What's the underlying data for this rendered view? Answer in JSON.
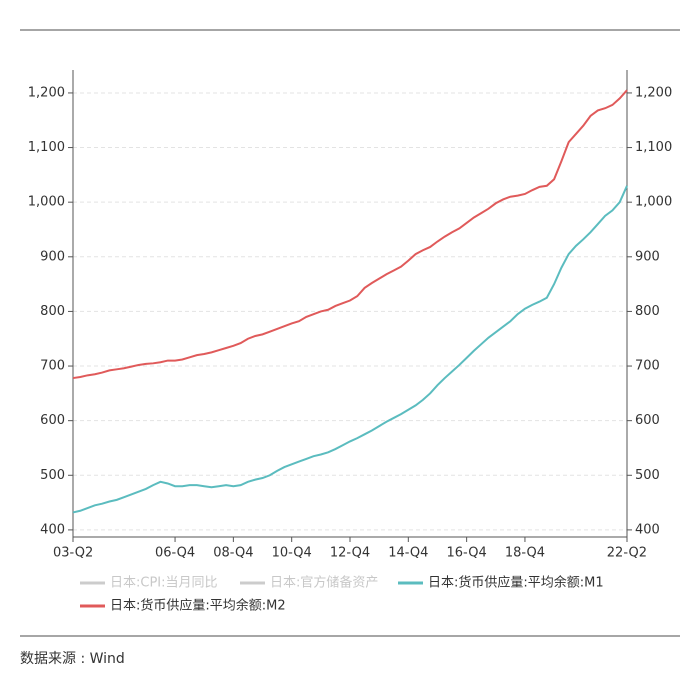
{
  "chart_data": {
    "type": "line",
    "categories": [
      "03-Q2",
      null,
      null,
      null,
      null,
      null,
      null,
      null,
      null,
      null,
      null,
      null,
      null,
      null,
      "06-Q4",
      null,
      null,
      null,
      null,
      null,
      null,
      null,
      "08-Q4",
      null,
      null,
      null,
      null,
      null,
      null,
      null,
      "10-Q4",
      null,
      null,
      null,
      null,
      null,
      null,
      null,
      "12-Q4",
      null,
      null,
      null,
      null,
      null,
      null,
      null,
      "14-Q4",
      null,
      null,
      null,
      null,
      null,
      null,
      null,
      "16-Q4",
      null,
      null,
      null,
      null,
      null,
      null,
      null,
      "18-Q4",
      null,
      null,
      null,
      null,
      null,
      null,
      null,
      null,
      null,
      null,
      null,
      null,
      null,
      "22-Q2"
    ],
    "series": [
      {
        "name": "日本:CPI:当月同比",
        "color": "#cccccc",
        "visible": false,
        "values": [
          null,
          null,
          null,
          null,
          null,
          null,
          null,
          null,
          null,
          null,
          null,
          null,
          null,
          null,
          null,
          null,
          null,
          null,
          null,
          null,
          null,
          null,
          null,
          null,
          null,
          null,
          null,
          null,
          null,
          null,
          null,
          null,
          null,
          null,
          null,
          null,
          null,
          null,
          null,
          null,
          null,
          null,
          null,
          null,
          null,
          null,
          null,
          null,
          null,
          null,
          null,
          null,
          null,
          null,
          null,
          null,
          null,
          null,
          null,
          null,
          null,
          null,
          null,
          null,
          null,
          null,
          null,
          null,
          null,
          null,
          null,
          null,
          null,
          null,
          null,
          null,
          null
        ]
      },
      {
        "name": "日本:官方储备资产",
        "color": "#cccccc",
        "visible": false,
        "values": [
          null,
          null,
          null,
          null,
          null,
          null,
          null,
          null,
          null,
          null,
          null,
          null,
          null,
          null,
          null,
          null,
          null,
          null,
          null,
          null,
          null,
          null,
          null,
          null,
          null,
          null,
          null,
          null,
          null,
          null,
          null,
          null,
          null,
          null,
          null,
          null,
          null,
          null,
          null,
          null,
          null,
          null,
          null,
          null,
          null,
          null,
          null,
          null,
          null,
          null,
          null,
          null,
          null,
          null,
          null,
          null,
          null,
          null,
          null,
          null,
          null,
          null,
          null,
          null,
          null,
          null,
          null,
          null,
          null,
          null,
          null,
          null,
          null,
          null,
          null,
          null,
          null
        ]
      },
      {
        "name": "日本:货币供应量:平均余额:M1",
        "color": "#5bbcbf",
        "visible": true,
        "values": [
          432,
          435,
          440,
          445,
          448,
          452,
          455,
          460,
          465,
          470,
          475,
          482,
          488,
          485,
          480,
          480,
          482,
          482,
          480,
          478,
          480,
          482,
          480,
          482,
          488,
          492,
          495,
          500,
          508,
          515,
          520,
          525,
          530,
          535,
          538,
          542,
          548,
          555,
          562,
          568,
          575,
          582,
          590,
          598,
          605,
          612,
          620,
          628,
          638,
          650,
          665,
          678,
          690,
          702,
          715,
          728,
          740,
          752,
          762,
          772,
          782,
          795,
          805,
          812,
          818,
          825,
          850,
          880,
          905,
          920,
          932,
          945,
          960,
          975,
          985,
          1000,
          1030
        ]
      },
      {
        "name": "日本:货币供应量:平均余额:M2",
        "color": "#e05a5a",
        "visible": true,
        "values": [
          678,
          680,
          683,
          685,
          688,
          692,
          694,
          696,
          699,
          702,
          704,
          705,
          707,
          710,
          710,
          712,
          716,
          720,
          722,
          725,
          729,
          733,
          737,
          742,
          750,
          755,
          758,
          763,
          768,
          773,
          778,
          782,
          790,
          795,
          800,
          803,
          810,
          815,
          820,
          828,
          843,
          852,
          860,
          868,
          875,
          882,
          893,
          905,
          912,
          918,
          928,
          937,
          945,
          952,
          962,
          972,
          980,
          988,
          998,
          1005,
          1010,
          1012,
          1015,
          1022,
          1028,
          1030,
          1042,
          1075,
          1110,
          1125,
          1140,
          1158,
          1168,
          1172,
          1178,
          1190,
          1205
        ]
      }
    ],
    "ylim": [
      387,
      1242
    ],
    "yticks": [
      400,
      500,
      600,
      700,
      800,
      900,
      {
        "value": 1000,
        "label": "1,000"
      },
      {
        "value": 1100,
        "label": "1,100"
      },
      {
        "value": 1200,
        "label": "1,200"
      }
    ],
    "y2lim": [
      387,
      1242
    ],
    "y2ticks": [
      400,
      500,
      600,
      700,
      800,
      900,
      {
        "value": 1000,
        "label": "1,000"
      },
      {
        "value": 1100,
        "label": "1,100"
      },
      {
        "value": 1200,
        "label": "1,200"
      }
    ],
    "grid": true,
    "source": "数据来源 : Wind"
  }
}
